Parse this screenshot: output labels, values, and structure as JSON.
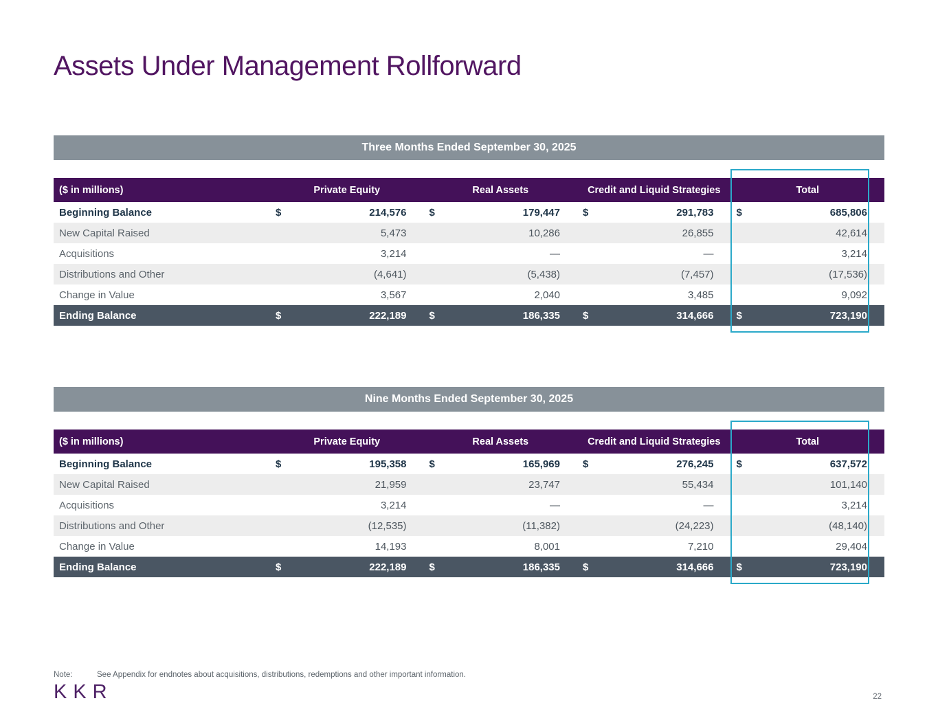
{
  "page": {
    "title": "Assets Under Management Rollforward",
    "note_label": "Note:",
    "note_text": "See Appendix for endnotes about acquisitions, distributions, redemptions and other important information.",
    "logo_text": "KKR",
    "page_number": "22"
  },
  "colors": {
    "title_purple": "#511561",
    "header_purple": "#441159",
    "band_gray": "#879199",
    "ending_row_slate": "#4a5663",
    "stripe_gray": "#ededed",
    "highlight_teal": "#2ba9c9",
    "strong_text": "#21374a",
    "logo_purple": "#4e2166"
  },
  "tables": [
    {
      "period_title": "Three Months Ended September 30, 2025",
      "unit_label": "($ in millions)",
      "columns": [
        "Private Equity",
        "Real Assets",
        "Credit and Liquid Strategies",
        "Total"
      ],
      "rows": [
        {
          "label": "Beginning Balance",
          "style": "begin",
          "dollar": "$",
          "values": [
            "214,576",
            "179,447",
            "291,783",
            "685,806"
          ]
        },
        {
          "label": "New Capital Raised",
          "style": "stripe",
          "dollar": "",
          "values": [
            "5,473",
            "10,286",
            "26,855",
            "42,614"
          ]
        },
        {
          "label": "Acquisitions",
          "style": "plain",
          "dollar": "",
          "values": [
            "3,214",
            "—",
            "—",
            "3,214"
          ]
        },
        {
          "label": "Distributions and Other",
          "style": "stripe",
          "dollar": "",
          "values": [
            "(4,641)",
            "(5,438)",
            "(7,457)",
            "(17,536)"
          ]
        },
        {
          "label": "Change in Value",
          "style": "plain",
          "dollar": "",
          "values": [
            "3,567",
            "2,040",
            "3,485",
            "9,092"
          ]
        },
        {
          "label": "Ending Balance",
          "style": "ending",
          "dollar": "$",
          "values": [
            "222,189",
            "186,335",
            "314,666",
            "723,190"
          ]
        }
      ]
    },
    {
      "period_title": "Nine Months Ended September 30, 2025",
      "unit_label": "($ in millions)",
      "columns": [
        "Private Equity",
        "Real Assets",
        "Credit and Liquid Strategies",
        "Total"
      ],
      "rows": [
        {
          "label": "Beginning Balance",
          "style": "begin",
          "dollar": "$",
          "values": [
            "195,358",
            "165,969",
            "276,245",
            "637,572"
          ]
        },
        {
          "label": "New Capital Raised",
          "style": "stripe",
          "dollar": "",
          "values": [
            "21,959",
            "23,747",
            "55,434",
            "101,140"
          ]
        },
        {
          "label": "Acquisitions",
          "style": "plain",
          "dollar": "",
          "values": [
            "3,214",
            "—",
            "—",
            "3,214"
          ]
        },
        {
          "label": "Distributions and Other",
          "style": "stripe",
          "dollar": "",
          "values": [
            "(12,535)",
            "(11,382)",
            "(24,223)",
            "(48,140)"
          ]
        },
        {
          "label": "Change in Value",
          "style": "plain",
          "dollar": "",
          "values": [
            "14,193",
            "8,001",
            "7,210",
            "29,404"
          ]
        },
        {
          "label": "Ending Balance",
          "style": "ending",
          "dollar": "$",
          "values": [
            "222,189",
            "186,335",
            "314,666",
            "723,190"
          ]
        }
      ]
    }
  ]
}
